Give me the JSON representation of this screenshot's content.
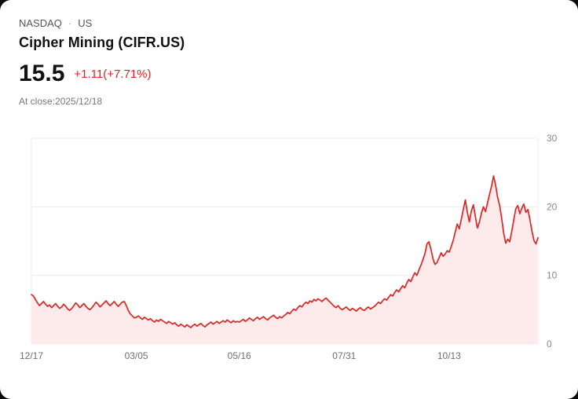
{
  "header": {
    "exchange": "NASDAQ",
    "separator": "·",
    "market": "US",
    "title": "Cipher Mining (CIFR.US)"
  },
  "quote": {
    "price": "15.5",
    "change": "+1.11(+7.71%)",
    "as_of": "At close:2025/12/18",
    "change_color": "#e02020"
  },
  "chart_data": {
    "type": "area",
    "title": "Cipher Mining (CIFR.US) 1-year price",
    "xlabel": "",
    "ylabel": "",
    "ylim": [
      0,
      30
    ],
    "grid": true,
    "legend": false,
    "legend_position": "none",
    "line_color": "#e02424",
    "fill_color": "#fcebea",
    "x_tick_labels": [
      "12/17",
      "03/05",
      "05/16",
      "07/31",
      "10/13"
    ],
    "x_tick_indices": [
      0,
      52,
      103,
      155,
      207
    ],
    "y_ticks": [
      0,
      10,
      20,
      30
    ],
    "series": [
      {
        "name": "CIFR.US",
        "values": [
          7.2,
          7.0,
          6.5,
          6.0,
          5.6,
          5.9,
          6.2,
          5.8,
          5.5,
          5.7,
          5.3,
          5.6,
          5.9,
          5.5,
          5.2,
          5.4,
          5.8,
          5.5,
          5.1,
          4.9,
          5.2,
          5.6,
          6.0,
          5.7,
          5.3,
          5.6,
          5.9,
          5.5,
          5.2,
          5.0,
          5.3,
          5.7,
          6.1,
          5.8,
          5.4,
          5.7,
          6.0,
          6.3,
          5.9,
          5.6,
          5.9,
          6.2,
          5.8,
          5.5,
          5.8,
          6.1,
          6.2,
          5.6,
          4.9,
          4.4,
          4.1,
          3.8,
          3.9,
          4.1,
          3.8,
          3.6,
          3.9,
          3.7,
          3.5,
          3.7,
          3.4,
          3.2,
          3.5,
          3.3,
          3.6,
          3.4,
          3.2,
          3.0,
          3.3,
          3.1,
          2.9,
          3.1,
          2.8,
          2.6,
          2.9,
          2.7,
          2.5,
          2.8,
          2.6,
          2.4,
          2.7,
          2.9,
          2.6,
          2.8,
          3.0,
          2.7,
          2.5,
          2.8,
          3.0,
          3.2,
          2.9,
          3.1,
          3.3,
          3.0,
          3.2,
          3.4,
          3.2,
          3.5,
          3.3,
          3.1,
          3.4,
          3.2,
          3.3,
          3.2,
          3.4,
          3.6,
          3.3,
          3.5,
          3.8,
          3.6,
          3.4,
          3.7,
          3.9,
          3.6,
          3.8,
          4.0,
          3.7,
          3.5,
          3.8,
          4.0,
          4.2,
          3.9,
          3.7,
          4.0,
          3.8,
          4.1,
          4.3,
          4.6,
          4.4,
          4.8,
          5.1,
          4.9,
          5.3,
          5.6,
          5.4,
          5.8,
          6.1,
          5.9,
          6.3,
          6.1,
          6.5,
          6.3,
          6.6,
          6.4,
          6.2,
          6.5,
          6.7,
          6.4,
          6.1,
          5.8,
          5.5,
          5.3,
          5.6,
          5.2,
          5.0,
          5.2,
          5.4,
          5.1,
          4.9,
          5.2,
          5.0,
          4.8,
          5.1,
          5.3,
          5.0,
          4.9,
          5.2,
          5.4,
          5.1,
          5.3,
          5.5,
          5.8,
          6.1,
          5.9,
          6.3,
          6.6,
          6.4,
          6.8,
          7.2,
          7.0,
          7.5,
          7.9,
          7.6,
          8.1,
          8.5,
          8.2,
          8.9,
          9.4,
          9.1,
          9.8,
          10.4,
          10.0,
          10.8,
          11.5,
          12.3,
          13.2,
          14.6,
          14.9,
          13.8,
          12.4,
          11.6,
          11.9,
          12.6,
          13.3,
          12.8,
          13.1,
          13.6,
          13.4,
          14.2,
          15.1,
          16.3,
          17.5,
          16.8,
          18.2,
          19.6,
          21.0,
          19.2,
          17.8,
          19.4,
          20.3,
          18.6,
          16.9,
          17.8,
          19.1,
          20.0,
          19.3,
          20.6,
          21.8,
          23.0,
          24.5,
          23.2,
          21.4,
          20.2,
          18.4,
          16.2,
          14.7,
          15.3,
          14.9,
          16.4,
          18.1,
          19.7,
          20.2,
          19.0,
          19.8,
          20.4,
          19.2,
          19.6,
          18.2,
          16.5,
          15.1,
          14.6,
          15.5
        ]
      }
    ]
  }
}
